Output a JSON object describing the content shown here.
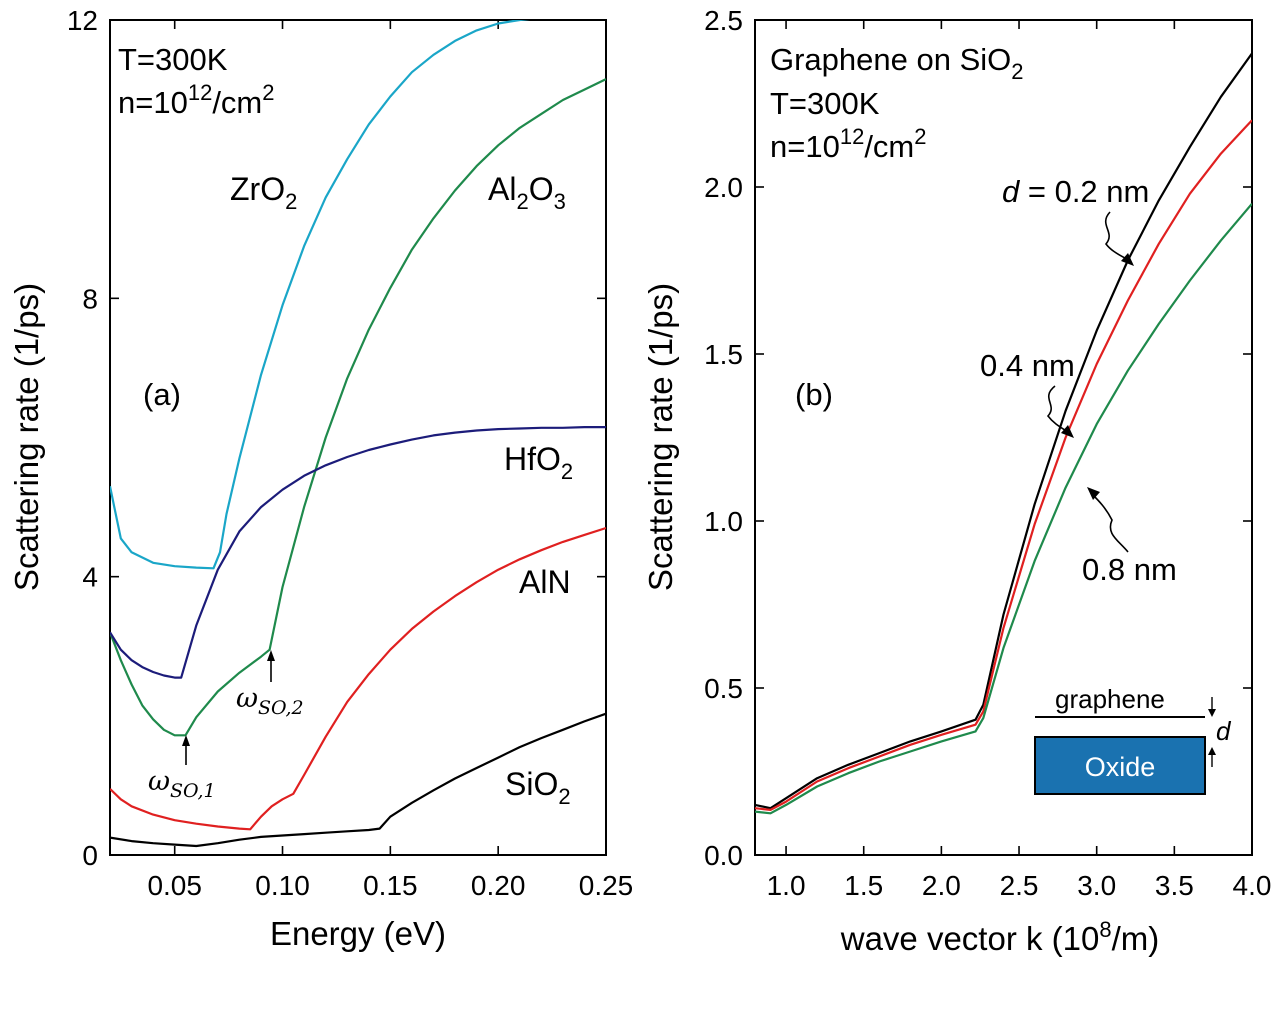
{
  "chart_data": [
    {
      "type": "line",
      "panel_label": "(a)",
      "xlabel": "Energy (eV)",
      "ylabel": "Scattering rate (1/ps)",
      "xlim": [
        0.02,
        0.25
      ],
      "ylim": [
        0,
        12
      ],
      "xticks": [
        0.05,
        0.1,
        0.15,
        0.2,
        0.25
      ],
      "xtick_labels": [
        "0.05",
        "0.10",
        "0.15",
        "0.20",
        "0.25"
      ],
      "yticks": [
        0,
        4,
        8,
        12
      ],
      "ytick_labels": [
        "0",
        "4",
        "8",
        "12"
      ],
      "annotations": {
        "temperature": "T=300K",
        "density_prefix": "n=10",
        "density_exp": "12",
        "density_unit": "/cm",
        "density_unit_exp": "2"
      },
      "omega_labels": {
        "so1_main": "ω",
        "so1_sub": "SO,1",
        "so2_main": "ω",
        "so2_sub": "SO,2"
      },
      "series": [
        {
          "name": "ZrO2",
          "label_main": "ZrO",
          "label_sub": "2",
          "color": "#1aa6c8",
          "x": [
            0.02,
            0.022,
            0.025,
            0.03,
            0.04,
            0.05,
            0.06,
            0.068,
            0.071,
            0.074,
            0.08,
            0.09,
            0.1,
            0.11,
            0.12,
            0.13,
            0.14,
            0.15,
            0.16,
            0.17,
            0.18,
            0.19,
            0.2,
            0.21,
            0.225
          ],
          "y": [
            5.3,
            5.0,
            4.55,
            4.35,
            4.2,
            4.15,
            4.13,
            4.12,
            4.35,
            4.9,
            5.7,
            6.9,
            7.9,
            8.75,
            9.45,
            10.0,
            10.5,
            10.9,
            11.25,
            11.5,
            11.7,
            11.85,
            11.95,
            12.0,
            12.05
          ]
        },
        {
          "name": "Al2O3",
          "label_main": "Al",
          "label_mid": "2",
          "label_main2": "O",
          "label_sub": "3",
          "color": "#1f8a4c",
          "x": [
            0.02,
            0.025,
            0.03,
            0.035,
            0.04,
            0.045,
            0.05,
            0.055,
            0.06,
            0.07,
            0.08,
            0.09,
            0.094,
            0.1,
            0.11,
            0.12,
            0.13,
            0.14,
            0.15,
            0.16,
            0.17,
            0.18,
            0.19,
            0.2,
            0.21,
            0.22,
            0.23,
            0.24,
            0.25
          ],
          "y": [
            3.2,
            2.8,
            2.45,
            2.15,
            1.95,
            1.8,
            1.72,
            1.72,
            1.98,
            2.35,
            2.62,
            2.85,
            2.95,
            3.85,
            5.0,
            6.0,
            6.85,
            7.55,
            8.15,
            8.7,
            9.15,
            9.55,
            9.9,
            10.2,
            10.45,
            10.65,
            10.85,
            11.0,
            11.15
          ]
        },
        {
          "name": "HfO2",
          "label_main": "HfO",
          "label_sub": "2",
          "color": "#1c1c7a",
          "x": [
            0.02,
            0.025,
            0.03,
            0.035,
            0.04,
            0.045,
            0.05,
            0.053,
            0.06,
            0.07,
            0.08,
            0.09,
            0.1,
            0.11,
            0.12,
            0.13,
            0.14,
            0.15,
            0.16,
            0.17,
            0.18,
            0.19,
            0.2,
            0.21,
            0.22,
            0.23,
            0.24,
            0.25
          ],
          "y": [
            3.2,
            2.95,
            2.8,
            2.7,
            2.63,
            2.58,
            2.55,
            2.55,
            3.3,
            4.1,
            4.65,
            5.0,
            5.25,
            5.45,
            5.6,
            5.72,
            5.82,
            5.9,
            5.97,
            6.03,
            6.07,
            6.1,
            6.12,
            6.13,
            6.14,
            6.14,
            6.15,
            6.15
          ]
        },
        {
          "name": "AlN",
          "label_main": "AlN",
          "color": "#e02020",
          "x": [
            0.02,
            0.025,
            0.03,
            0.04,
            0.05,
            0.06,
            0.07,
            0.08,
            0.085,
            0.09,
            0.095,
            0.1,
            0.105,
            0.11,
            0.12,
            0.13,
            0.14,
            0.15,
            0.16,
            0.17,
            0.18,
            0.19,
            0.2,
            0.21,
            0.22,
            0.23,
            0.24,
            0.25
          ],
          "y": [
            0.95,
            0.8,
            0.7,
            0.58,
            0.5,
            0.45,
            0.41,
            0.38,
            0.37,
            0.55,
            0.7,
            0.8,
            0.88,
            1.15,
            1.7,
            2.2,
            2.6,
            2.95,
            3.25,
            3.5,
            3.72,
            3.92,
            4.1,
            4.25,
            4.38,
            4.5,
            4.6,
            4.7
          ]
        },
        {
          "name": "SiO2",
          "label_main": "SiO",
          "label_sub": "2",
          "color": "#000000",
          "x": [
            0.02,
            0.03,
            0.04,
            0.05,
            0.06,
            0.07,
            0.08,
            0.09,
            0.1,
            0.11,
            0.12,
            0.13,
            0.14,
            0.145,
            0.15,
            0.16,
            0.17,
            0.18,
            0.19,
            0.2,
            0.21,
            0.22,
            0.23,
            0.24,
            0.25
          ],
          "y": [
            0.25,
            0.2,
            0.17,
            0.15,
            0.13,
            0.17,
            0.22,
            0.26,
            0.28,
            0.3,
            0.32,
            0.34,
            0.36,
            0.38,
            0.55,
            0.75,
            0.93,
            1.1,
            1.25,
            1.4,
            1.55,
            1.68,
            1.8,
            1.92,
            2.03
          ]
        }
      ]
    },
    {
      "type": "line",
      "panel_label": "(b)",
      "xlabel_prefix": "wave vector k (10",
      "xlabel_exp": "8",
      "xlabel_suffix": "/m)",
      "ylabel": "Scattering rate (1/ps)",
      "xlim": [
        0.8,
        4.0
      ],
      "ylim": [
        0,
        2.5
      ],
      "xticks": [
        1.0,
        1.5,
        2.0,
        2.5,
        3.0,
        3.5,
        4.0
      ],
      "xtick_labels": [
        "1.0",
        "1.5",
        "2.0",
        "2.5",
        "3.0",
        "3.5",
        "4.0"
      ],
      "yticks": [
        0,
        0.5,
        1.0,
        1.5,
        2.0,
        2.5
      ],
      "ytick_labels": [
        "0.0",
        "0.5",
        "1.0",
        "1.5",
        "2.0",
        "2.5"
      ],
      "annotations": {
        "title_main": "Graphene on SiO",
        "title_sub": "2",
        "temperature": "T=300K",
        "density_prefix": "n=10",
        "density_exp": "12",
        "density_unit": "/cm",
        "density_unit_exp": "2",
        "d_symbol": "d",
        "d_value": " = 0.2 nm",
        "label_04": "0.4 nm",
        "label_08": "0.8 nm"
      },
      "inset": {
        "graphene_label": "graphene",
        "oxide_label": "Oxide",
        "d_label": "d",
        "oxide_color": "#1a72b0"
      },
      "series": [
        {
          "name": "d = 0.2 nm",
          "color": "#000000",
          "x": [
            0.8,
            0.9,
            1.0,
            1.2,
            1.4,
            1.6,
            1.8,
            2.0,
            2.22,
            2.27,
            2.4,
            2.6,
            2.8,
            3.0,
            3.2,
            3.4,
            3.6,
            3.8,
            4.0
          ],
          "y": [
            0.15,
            0.14,
            0.17,
            0.23,
            0.27,
            0.305,
            0.34,
            0.37,
            0.405,
            0.45,
            0.72,
            1.05,
            1.33,
            1.57,
            1.78,
            1.96,
            2.12,
            2.27,
            2.4
          ]
        },
        {
          "name": "0.4 nm",
          "color": "#e02020",
          "x": [
            0.8,
            0.9,
            1.0,
            1.2,
            1.4,
            1.6,
            1.8,
            2.0,
            2.22,
            2.27,
            2.4,
            2.6,
            2.8,
            3.0,
            3.2,
            3.4,
            3.6,
            3.8,
            4.0
          ],
          "y": [
            0.14,
            0.135,
            0.16,
            0.22,
            0.26,
            0.295,
            0.33,
            0.36,
            0.39,
            0.43,
            0.68,
            0.99,
            1.25,
            1.47,
            1.66,
            1.83,
            1.98,
            2.1,
            2.2
          ]
        },
        {
          "name": "0.8 nm",
          "color": "#1f8a4c",
          "x": [
            0.8,
            0.9,
            1.0,
            1.2,
            1.4,
            1.6,
            1.8,
            2.0,
            2.22,
            2.27,
            2.4,
            2.6,
            2.8,
            3.0,
            3.2,
            3.4,
            3.6,
            3.8,
            4.0
          ],
          "y": [
            0.13,
            0.125,
            0.15,
            0.205,
            0.245,
            0.28,
            0.31,
            0.34,
            0.37,
            0.41,
            0.62,
            0.88,
            1.1,
            1.29,
            1.45,
            1.59,
            1.72,
            1.84,
            1.95
          ]
        }
      ]
    }
  ]
}
